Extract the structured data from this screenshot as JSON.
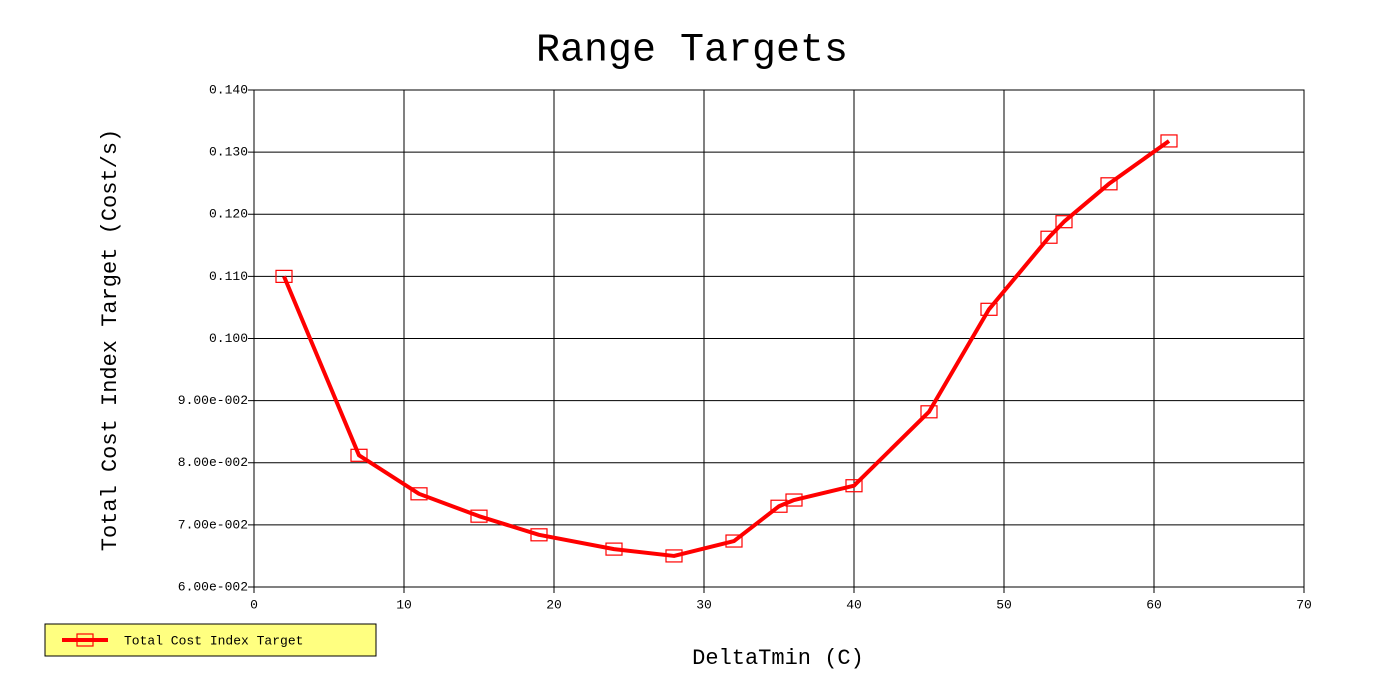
{
  "chart_data": {
    "type": "line",
    "title": "Range Targets",
    "x_label": "DeltaTmin (C)",
    "y_label": "Total Cost Index Target  (Cost/s)",
    "x": [
      2,
      7,
      11,
      15,
      19,
      24,
      28,
      32,
      35,
      36,
      40,
      45,
      49,
      53,
      54,
      57,
      61
    ],
    "series": [
      {
        "name": "Total Cost Index Target",
        "color": "#ff0000",
        "values": [
          0.11,
          0.0812,
          0.075,
          0.0714,
          0.0684,
          0.0661,
          0.065,
          0.0674,
          0.073,
          0.074,
          0.0763,
          0.0882,
          0.1047,
          0.1163,
          0.1188,
          0.1249,
          0.1318
        ]
      }
    ],
    "xlim": [
      0,
      70
    ],
    "xticks": [
      0,
      10,
      20,
      30,
      40,
      50,
      60,
      70
    ],
    "ylim": [
      0.06,
      0.14
    ],
    "yticks": [
      {
        "value": 0.06,
        "label": "6.00e-002"
      },
      {
        "value": 0.07,
        "label": "7.00e-002"
      },
      {
        "value": 0.08,
        "label": "8.00e-002"
      },
      {
        "value": 0.09,
        "label": "9.00e-002"
      },
      {
        "value": 0.1,
        "label": "0.100"
      },
      {
        "value": 0.11,
        "label": "0.110"
      },
      {
        "value": 0.12,
        "label": "0.120"
      },
      {
        "value": 0.13,
        "label": "0.130"
      },
      {
        "value": 0.14,
        "label": "0.140"
      }
    ],
    "grid": true,
    "legend": "bottom-left"
  }
}
